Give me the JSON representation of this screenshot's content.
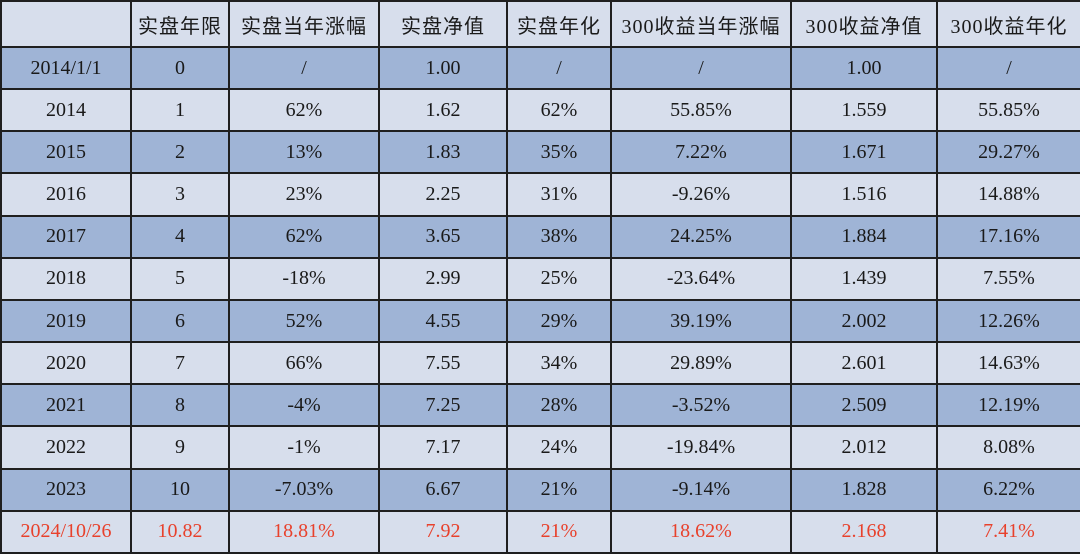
{
  "table": {
    "headers": [
      "",
      "实盘年限",
      "实盘当年涨幅",
      "实盘净值",
      "实盘年化",
      "300收益当年涨幅",
      "300收益净值",
      "300收益年化"
    ],
    "rows": [
      [
        "2014/1/1",
        "0",
        "/",
        "1.00",
        "/",
        "/",
        "1.00",
        "/"
      ],
      [
        "2014",
        "1",
        "62%",
        "1.62",
        "62%",
        "55.85%",
        "1.559",
        "55.85%"
      ],
      [
        "2015",
        "2",
        "13%",
        "1.83",
        "35%",
        "7.22%",
        "1.671",
        "29.27%"
      ],
      [
        "2016",
        "3",
        "23%",
        "2.25",
        "31%",
        "-9.26%",
        "1.516",
        "14.88%"
      ],
      [
        "2017",
        "4",
        "62%",
        "3.65",
        "38%",
        "24.25%",
        "1.884",
        "17.16%"
      ],
      [
        "2018",
        "5",
        "-18%",
        "2.99",
        "25%",
        "-23.64%",
        "1.439",
        "7.55%"
      ],
      [
        "2019",
        "6",
        "52%",
        "4.55",
        "29%",
        "39.19%",
        "2.002",
        "12.26%"
      ],
      [
        "2020",
        "7",
        "66%",
        "7.55",
        "34%",
        "29.89%",
        "2.601",
        "14.63%"
      ],
      [
        "2021",
        "8",
        "-4%",
        "7.25",
        "28%",
        "-3.52%",
        "2.509",
        "12.19%"
      ],
      [
        "2022",
        "9",
        "-1%",
        "7.17",
        "24%",
        "-19.84%",
        "2.012",
        "8.08%"
      ],
      [
        "2023",
        "10",
        "-7.03%",
        "6.67",
        "21%",
        "-9.14%",
        "1.828",
        "6.22%"
      ],
      [
        "2024/10/26",
        "10.82",
        "18.81%",
        "7.92",
        "21%",
        "18.62%",
        "2.168",
        "7.41%"
      ]
    ],
    "colors": {
      "light_row": "#d7deec",
      "dark_row": "#9fb4d6",
      "highlight_text": "#e8412c",
      "border": "#1f1f1f"
    }
  }
}
